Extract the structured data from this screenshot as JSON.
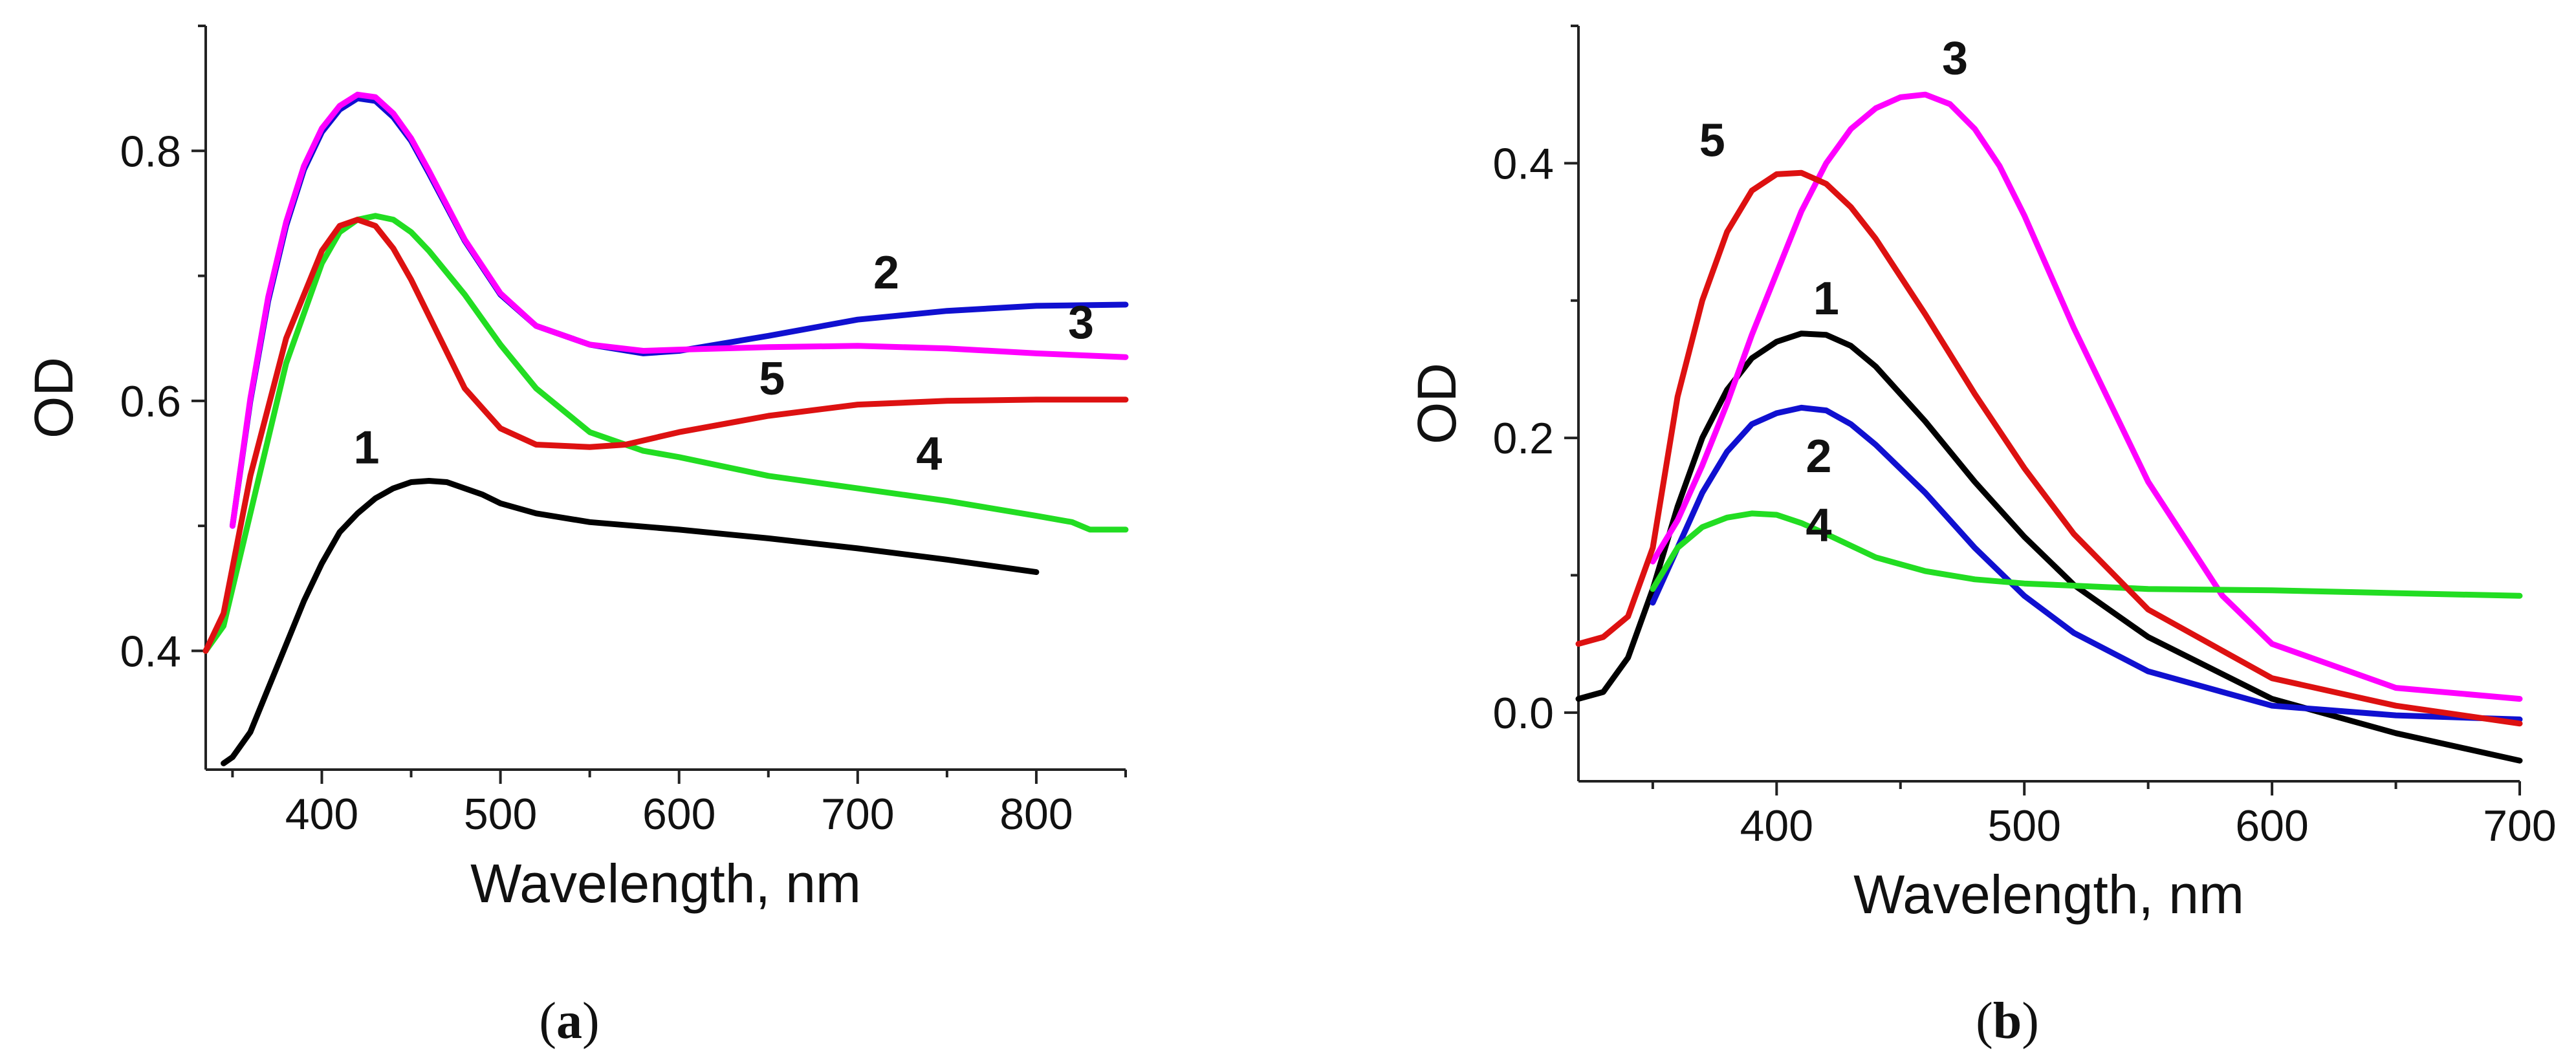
{
  "chart_data": [
    {
      "type": "line",
      "panel_label": "a",
      "xlabel": "Wavelength, nm",
      "ylabel": "OD",
      "xlim": [
        335,
        850
      ],
      "ylim": [
        0.305,
        0.9
      ],
      "xticks": [
        400,
        500,
        600,
        700,
        800
      ],
      "yticks": [
        0.4,
        0.6,
        0.8
      ],
      "x_tick_labels": [
        "400",
        "500",
        "600",
        "700",
        "800"
      ],
      "y_tick_labels": [
        "0.4",
        "0.6",
        "0.8"
      ],
      "series": [
        {
          "name": "1",
          "color": "#000000",
          "x": [
            345,
            350,
            360,
            370,
            380,
            390,
            400,
            410,
            420,
            430,
            440,
            450,
            460,
            470,
            480,
            490,
            500,
            520,
            550,
            600,
            650,
            700,
            750,
            800
          ],
          "y": [
            0.31,
            0.315,
            0.335,
            0.37,
            0.405,
            0.44,
            0.47,
            0.495,
            0.51,
            0.522,
            0.53,
            0.535,
            0.536,
            0.535,
            0.53,
            0.525,
            0.518,
            0.51,
            0.503,
            0.497,
            0.49,
            0.482,
            0.473,
            0.463
          ],
          "label_x": 425,
          "label_y": 0.55
        },
        {
          "name": "2",
          "color": "#1010d0",
          "x": [
            350,
            360,
            370,
            380,
            390,
            400,
            410,
            420,
            430,
            440,
            450,
            460,
            480,
            500,
            520,
            550,
            580,
            600,
            650,
            700,
            750,
            800,
            850
          ],
          "y": [
            0.5,
            0.6,
            0.68,
            0.74,
            0.785,
            0.815,
            0.833,
            0.842,
            0.84,
            0.827,
            0.808,
            0.782,
            0.728,
            0.685,
            0.66,
            0.645,
            0.638,
            0.64,
            0.652,
            0.665,
            0.672,
            0.676,
            0.677
          ],
          "label_x": 716,
          "label_y": 0.69
        },
        {
          "name": "3",
          "color": "#ff00ff",
          "x": [
            350,
            360,
            370,
            380,
            390,
            400,
            410,
            420,
            430,
            440,
            450,
            460,
            480,
            500,
            520,
            550,
            580,
            600,
            650,
            700,
            750,
            800,
            850
          ],
          "y": [
            0.5,
            0.602,
            0.683,
            0.743,
            0.788,
            0.818,
            0.836,
            0.845,
            0.843,
            0.83,
            0.81,
            0.784,
            0.729,
            0.686,
            0.66,
            0.645,
            0.64,
            0.641,
            0.643,
            0.644,
            0.642,
            0.638,
            0.635
          ],
          "label_x": 825,
          "label_y": 0.65
        },
        {
          "name": "4",
          "color": "#22dd22",
          "x": [
            335,
            345,
            360,
            380,
            400,
            410,
            420,
            430,
            440,
            450,
            460,
            480,
            500,
            520,
            550,
            580,
            600,
            650,
            700,
            750,
            800,
            820,
            830,
            850
          ],
          "y": [
            0.4,
            0.42,
            0.51,
            0.63,
            0.71,
            0.735,
            0.745,
            0.748,
            0.745,
            0.735,
            0.72,
            0.685,
            0.645,
            0.61,
            0.575,
            0.56,
            0.555,
            0.54,
            0.53,
            0.52,
            0.508,
            0.503,
            0.497,
            0.497
          ],
          "label_x": 740,
          "label_y": 0.545
        },
        {
          "name": "5",
          "color": "#dd1111",
          "x": [
            335,
            345,
            360,
            380,
            400,
            410,
            420,
            430,
            440,
            450,
            460,
            480,
            500,
            520,
            550,
            570,
            600,
            650,
            700,
            750,
            800,
            850
          ],
          "y": [
            0.4,
            0.43,
            0.54,
            0.65,
            0.72,
            0.74,
            0.745,
            0.74,
            0.722,
            0.697,
            0.668,
            0.61,
            0.578,
            0.565,
            0.563,
            0.565,
            0.575,
            0.588,
            0.597,
            0.6,
            0.601,
            0.601
          ],
          "label_x": 652,
          "label_y": 0.605
        }
      ]
    },
    {
      "type": "line",
      "panel_label": "b",
      "xlabel": "Wavelength, nm",
      "ylabel": "OD",
      "xlim": [
        320,
        700
      ],
      "ylim": [
        -0.05,
        0.5
      ],
      "xticks": [
        400,
        500,
        600,
        700
      ],
      "yticks": [
        0.0,
        0.2,
        0.4
      ],
      "x_tick_labels": [
        "400",
        "500",
        "600",
        "700"
      ],
      "y_tick_labels": [
        "0.0",
        "0.2",
        "0.4"
      ],
      "series": [
        {
          "name": "1",
          "color": "#000000",
          "x": [
            320,
            330,
            340,
            350,
            360,
            370,
            380,
            390,
            400,
            410,
            420,
            430,
            440,
            460,
            480,
            500,
            520,
            550,
            600,
            650,
            700
          ],
          "y": [
            0.01,
            0.015,
            0.04,
            0.09,
            0.15,
            0.2,
            0.235,
            0.258,
            0.27,
            0.276,
            0.275,
            0.267,
            0.252,
            0.212,
            0.168,
            0.128,
            0.093,
            0.055,
            0.01,
            -0.015,
            -0.035
          ],
          "label_x": 420,
          "label_y": 0.29
        },
        {
          "name": "2",
          "color": "#1010d0",
          "x": [
            350,
            360,
            370,
            380,
            390,
            400,
            410,
            420,
            430,
            440,
            460,
            480,
            500,
            520,
            550,
            600,
            650,
            700
          ],
          "y": [
            0.08,
            0.12,
            0.16,
            0.19,
            0.21,
            0.218,
            0.222,
            0.22,
            0.21,
            0.195,
            0.16,
            0.12,
            0.085,
            0.058,
            0.03,
            0.005,
            -0.002,
            -0.005
          ],
          "label_x": 417,
          "label_y": 0.175
        },
        {
          "name": "3",
          "color": "#ff00ff",
          "x": [
            350,
            360,
            370,
            380,
            390,
            400,
            410,
            420,
            430,
            440,
            450,
            460,
            470,
            480,
            490,
            500,
            520,
            550,
            580,
            600,
            650,
            700
          ],
          "y": [
            0.11,
            0.14,
            0.18,
            0.225,
            0.275,
            0.32,
            0.365,
            0.4,
            0.425,
            0.44,
            0.448,
            0.45,
            0.443,
            0.425,
            0.398,
            0.362,
            0.28,
            0.168,
            0.085,
            0.05,
            0.018,
            0.01
          ],
          "label_x": 472,
          "label_y": 0.465
        },
        {
          "name": "4",
          "color": "#22dd22",
          "x": [
            350,
            360,
            370,
            380,
            390,
            400,
            410,
            420,
            440,
            460,
            480,
            500,
            550,
            600,
            650,
            700
          ],
          "y": [
            0.09,
            0.12,
            0.135,
            0.142,
            0.145,
            0.144,
            0.138,
            0.13,
            0.113,
            0.103,
            0.097,
            0.094,
            0.09,
            0.089,
            0.087,
            0.085
          ],
          "label_x": 417,
          "label_y": 0.125
        },
        {
          "name": "5",
          "color": "#dd1111",
          "x": [
            320,
            330,
            340,
            350,
            360,
            370,
            380,
            390,
            400,
            410,
            420,
            430,
            440,
            460,
            480,
            500,
            520,
            550,
            600,
            650,
            700
          ],
          "y": [
            0.05,
            0.055,
            0.07,
            0.12,
            0.23,
            0.3,
            0.35,
            0.38,
            0.392,
            0.393,
            0.385,
            0.368,
            0.345,
            0.29,
            0.232,
            0.178,
            0.13,
            0.075,
            0.025,
            0.005,
            -0.008
          ],
          "label_x": 374,
          "label_y": 0.405
        }
      ]
    }
  ]
}
